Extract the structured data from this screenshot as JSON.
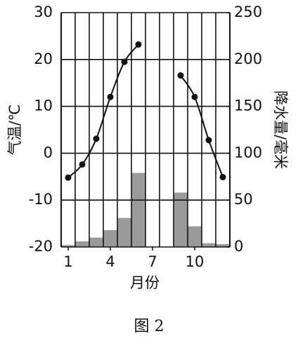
{
  "chart_data": {
    "type": "climate",
    "caption": "图 2",
    "y_label": "气温/℃",
    "y2_label": "降水量/毫米",
    "x_label": "月份",
    "x": [
      1,
      2,
      3,
      4,
      5,
      6,
      7,
      8,
      9,
      10,
      11,
      12
    ],
    "xlim": [
      0.5,
      12.5
    ],
    "xticks": [
      1,
      4,
      7,
      10
    ],
    "ylim": [
      -20,
      30
    ],
    "yticks": [
      -20,
      -10,
      0,
      10,
      20,
      30
    ],
    "y2lim": [
      0,
      250
    ],
    "y2ticks": [
      0,
      50,
      100,
      150,
      200,
      250
    ],
    "grid": true,
    "series": [
      {
        "name": "气温",
        "type": "line",
        "color": "#111111",
        "values": [
          -5.2,
          -2.4,
          3.1,
          12,
          19.5,
          23.2,
          null,
          null,
          16.6,
          12,
          2.8,
          -5.1
        ]
      },
      {
        "name": "降水量",
        "type": "bar",
        "axis": "y2",
        "color": "#9a9a9a",
        "values": [
          2,
          6,
          10,
          18,
          31,
          79,
          0,
          0,
          58,
          22,
          4,
          3
        ]
      }
    ]
  }
}
